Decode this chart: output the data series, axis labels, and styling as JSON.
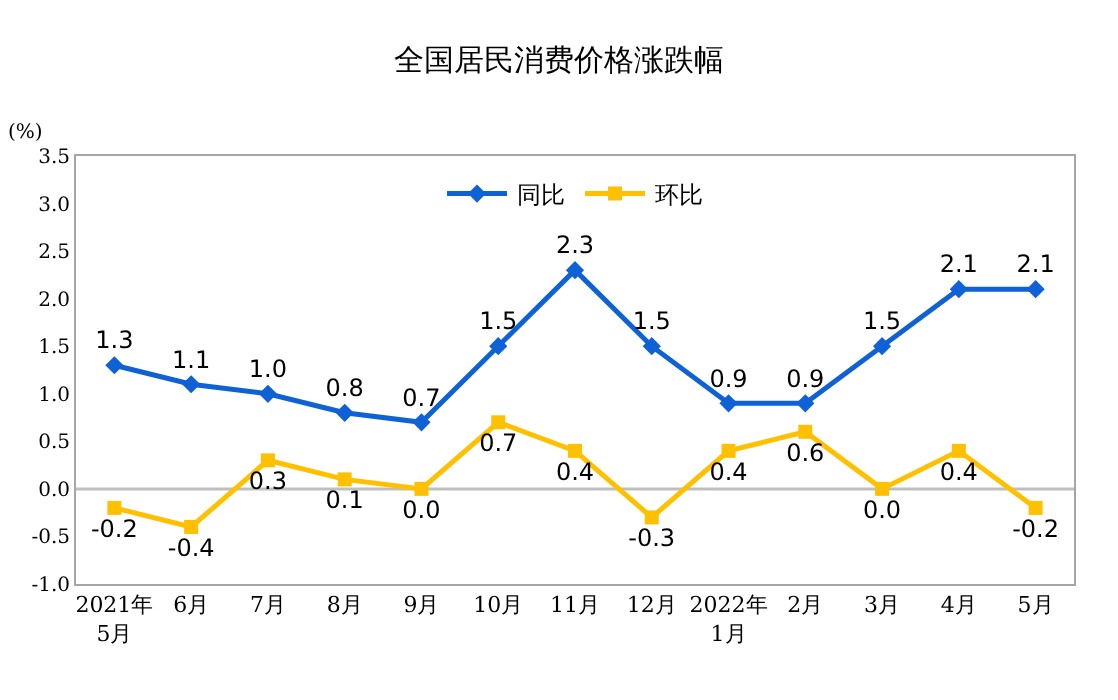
{
  "chart_data": {
    "type": "line",
    "title": "全国居民消费价格涨跌幅",
    "ylabel": "(%)",
    "categories": [
      "2021年\n5月",
      "6月",
      "7月",
      "8月",
      "9月",
      "10月",
      "11月",
      "12月",
      "2022年\n1月",
      "2月",
      "3月",
      "4月",
      "5月"
    ],
    "series": [
      {
        "name": "同比",
        "color": "#0f62d6",
        "marker": "diamond",
        "values": [
          1.3,
          1.1,
          1.0,
          0.8,
          0.7,
          1.5,
          2.3,
          1.5,
          0.9,
          0.9,
          1.5,
          2.1,
          2.1
        ],
        "value_labels": [
          "1.3",
          "1.1",
          "1.0",
          "0.8",
          "0.7",
          "1.5",
          "2.3",
          "1.5",
          "0.9",
          "0.9",
          "1.5",
          "2.1",
          "2.1"
        ]
      },
      {
        "name": "环比",
        "color": "#ffc000",
        "marker": "square",
        "values": [
          -0.2,
          -0.4,
          0.3,
          0.1,
          0.0,
          0.7,
          0.4,
          -0.3,
          0.4,
          0.6,
          0.0,
          0.4,
          -0.2
        ],
        "value_labels": [
          "-0.2",
          "-0.4",
          "0.3",
          "0.1",
          "0.0",
          "0.7",
          "0.4",
          "-0.3",
          "0.4",
          "0.6",
          "0.0",
          "0.4",
          "-0.2"
        ]
      }
    ],
    "ylim": [
      -1.0,
      3.5
    ],
    "yticks": [
      {
        "value": -1,
        "label": "-1.0"
      },
      {
        "value": -0.5,
        "label": "-0.5"
      },
      {
        "value": 0,
        "label": "0.0"
      },
      {
        "value": 0.5,
        "label": "0.5"
      },
      {
        "value": 1,
        "label": "1.0"
      },
      {
        "value": 1.5,
        "label": "1.5"
      },
      {
        "value": 2,
        "label": "2.0"
      },
      {
        "value": 2.5,
        "label": "2.5"
      },
      {
        "value": 3,
        "label": "3.0"
      },
      {
        "value": 3.5,
        "label": "3.5"
      }
    ],
    "ref_lines": [
      {
        "axis": "y",
        "value": 0,
        "color": "#bfbfbf"
      }
    ],
    "legend": "top",
    "grid": false,
    "line_style": "solid"
  }
}
